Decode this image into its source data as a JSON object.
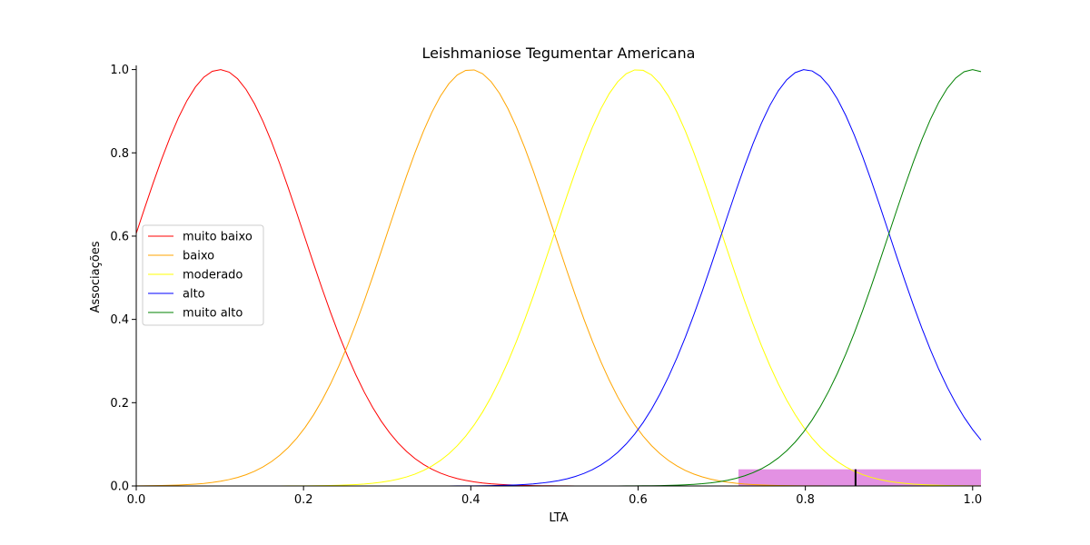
{
  "chart_data": {
    "type": "line",
    "title": "Leishmaniose Tegumentar Americana",
    "xlabel": "LTA",
    "ylabel": "Associações",
    "xlim": [
      0.0,
      1.01
    ],
    "ylim": [
      0.0,
      1.01
    ],
    "xticks": [
      "0.0",
      "0.2",
      "0.4",
      "0.6",
      "0.8",
      "1.0"
    ],
    "yticks": [
      "0.0",
      "0.2",
      "0.4",
      "0.6",
      "0.8",
      "1.0"
    ],
    "legend_position": "center-left",
    "grid": false,
    "series": [
      {
        "name": "muito baixo",
        "color": "#ff0000",
        "center": 0.1,
        "sigma": 0.1
      },
      {
        "name": "baixo",
        "color": "#ffa500",
        "center": 0.4,
        "sigma": 0.1
      },
      {
        "name": "moderado",
        "color": "#ffff00",
        "center": 0.6,
        "sigma": 0.1
      },
      {
        "name": "alto",
        "color": "#0000ff",
        "center": 0.8,
        "sigma": 0.1
      },
      {
        "name": "muito alto",
        "color": "#008000",
        "center": 1.0,
        "sigma": 0.1
      }
    ],
    "activation": {
      "color": "#e391e3",
      "x_start": 0.72,
      "x_end": 1.01,
      "level": 0.04
    },
    "output_marker": {
      "x": 0.86,
      "y": 0.04,
      "color": "#000000"
    }
  }
}
